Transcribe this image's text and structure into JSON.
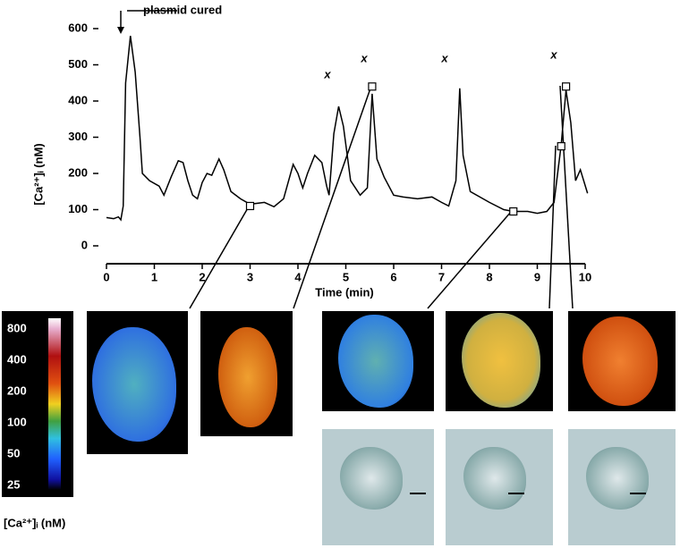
{
  "chart_data": {
    "type": "line",
    "annotation": "plasmid cured",
    "x_label": "Time (min)",
    "y_label": "[Ca²⁺]ᵢ (nM)",
    "x": [
      0,
      0.15,
      0.25,
      0.3,
      0.35,
      0.4,
      0.5,
      0.6,
      0.7,
      0.75,
      0.9,
      1.1,
      1.2,
      1.35,
      1.5,
      1.6,
      1.7,
      1.8,
      1.9,
      2.0,
      2.1,
      2.2,
      2.35,
      2.45,
      2.6,
      2.8,
      3.0,
      3.3,
      3.5,
      3.7,
      3.9,
      4.0,
      4.1,
      4.2,
      4.35,
      4.5,
      4.6,
      4.65,
      4.75,
      4.85,
      4.95,
      5.1,
      5.3,
      5.45,
      5.55,
      5.65,
      5.8,
      6.0,
      6.2,
      6.5,
      6.8,
      7.0,
      7.15,
      7.3,
      7.38,
      7.45,
      7.6,
      8.0,
      8.3,
      8.5,
      8.8,
      9.0,
      9.2,
      9.35,
      9.5,
      9.6,
      9.7,
      9.8,
      9.9,
      10.05
    ],
    "series": [
      {
        "color": "#000000",
        "values": [
          78,
          75,
          80,
          72,
          110,
          450,
          580,
          480,
          300,
          200,
          180,
          165,
          140,
          190,
          235,
          230,
          180,
          140,
          130,
          175,
          200,
          195,
          240,
          210,
          150,
          130,
          115,
          120,
          108,
          130,
          225,
          200,
          160,
          200,
          250,
          230,
          165,
          140,
          310,
          385,
          330,
          180,
          140,
          160,
          420,
          240,
          190,
          140,
          135,
          130,
          135,
          120,
          110,
          180,
          435,
          250,
          150,
          120,
          100,
          95,
          95,
          90,
          95,
          120,
          280,
          430,
          340,
          180,
          210,
          145
        ]
      }
    ],
    "markers": {
      "x": [
        3.0,
        5.55,
        8.5,
        9.5,
        9.6
      ],
      "values": [
        110,
        440,
        95,
        275,
        440
      ]
    },
    "spike_marks": [
      "x",
      "x",
      "x",
      "x"
    ],
    "xlim": [
      0,
      10
    ],
    "xticks": [
      0,
      1,
      2,
      3,
      4,
      5,
      6,
      7,
      8,
      9,
      10
    ],
    "ylim": [
      0,
      600
    ],
    "yticks": [
      0,
      100,
      200,
      300,
      400,
      500,
      600
    ],
    "colorbar_ticks": [
      "800",
      "400",
      "200",
      "100",
      "50",
      "25"
    ],
    "colorbar_label": "[Ca²⁺]ᵢ (nM)"
  }
}
